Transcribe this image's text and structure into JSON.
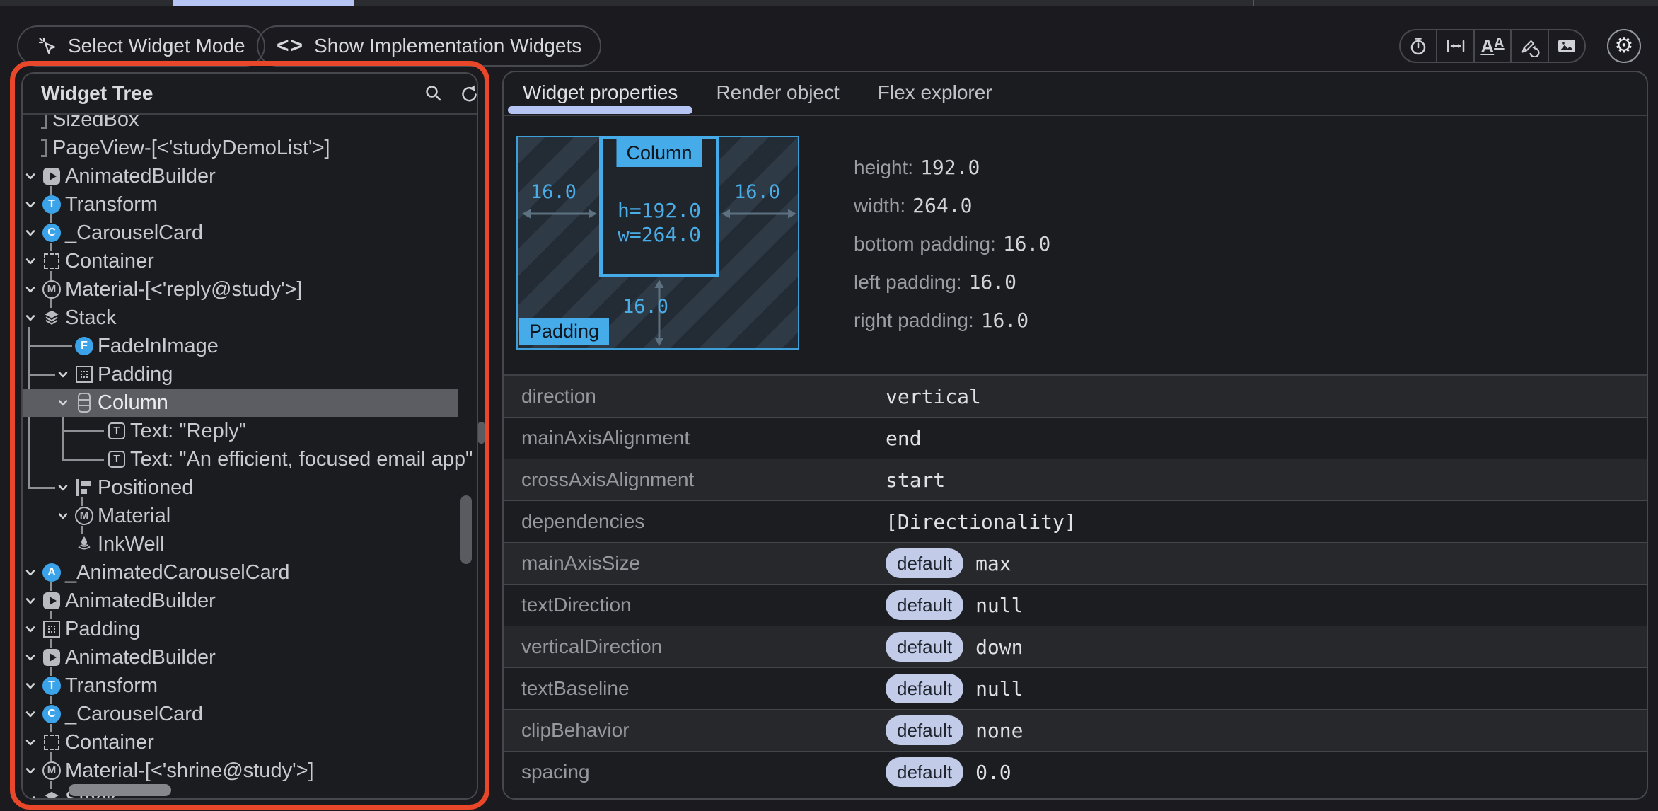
{
  "top_bar": {
    "active_tab_indicator_color": "#b5c4f3"
  },
  "toolbar": {
    "select_widget_mode_label": "Select Widget Mode",
    "show_implementation_widgets_label": "Show Implementation Widgets",
    "icon_buttons": [
      "slow-animations",
      "show-guidelines",
      "text-scaling",
      "highlight-repaints",
      "highlight-oversized-images"
    ],
    "settings_icon": "gear"
  },
  "widget_tree": {
    "title": "Widget Tree",
    "header_icons": [
      "search-icon",
      "refresh-icon"
    ],
    "items": [
      {
        "label": "SizedBox",
        "icon": "bracket",
        "depth": 0,
        "chevron": false
      },
      {
        "label": "PageView-[<'studyDemoList'>]",
        "icon": "bracket",
        "depth": 0,
        "chevron": false
      },
      {
        "label": "AnimatedBuilder",
        "icon": "animated-builder",
        "depth": 1,
        "chevron": true
      },
      {
        "label": "Transform",
        "icon": "letter-circle",
        "letter": "T",
        "depth": 1,
        "chevron": true
      },
      {
        "label": "_CarouselCard",
        "icon": "letter-circle",
        "letter": "C",
        "depth": 1,
        "chevron": true
      },
      {
        "label": "Container",
        "icon": "container",
        "depth": 1,
        "chevron": true
      },
      {
        "label": "Material-[<'reply@study'>]",
        "icon": "material",
        "depth": 1,
        "chevron": true
      },
      {
        "label": "Stack",
        "icon": "stack",
        "depth": 1,
        "chevron": true
      },
      {
        "label": "FadeInImage",
        "icon": "letter-circle",
        "letter": "F",
        "depth": 2,
        "chevron": false
      },
      {
        "label": "Padding",
        "icon": "padding",
        "depth": 2,
        "chevron": true
      },
      {
        "label": "Column",
        "icon": "column",
        "depth": 2,
        "chevron": true,
        "selected": true
      },
      {
        "label": "Text: \"Reply\"",
        "icon": "text",
        "depth": 3,
        "chevron": false
      },
      {
        "label": "Text: \"An efficient, focused email app\"",
        "icon": "text",
        "depth": 3,
        "chevron": false
      },
      {
        "label": "Positioned",
        "icon": "positioned",
        "depth": 2,
        "chevron": true
      },
      {
        "label": "Material",
        "icon": "material",
        "depth": 2,
        "chevron": true
      },
      {
        "label": "InkWell",
        "icon": "inkwell",
        "depth": 2,
        "chevron": false
      },
      {
        "label": "_AnimatedCarouselCard",
        "icon": "letter-circle",
        "letter": "A",
        "depth": 1,
        "chevron": true
      },
      {
        "label": "AnimatedBuilder",
        "icon": "animated-builder",
        "depth": 1,
        "chevron": true
      },
      {
        "label": "Padding",
        "icon": "padding",
        "depth": 1,
        "chevron": true
      },
      {
        "label": "AnimatedBuilder",
        "icon": "animated-builder",
        "depth": 1,
        "chevron": true
      },
      {
        "label": "Transform",
        "icon": "letter-circle",
        "letter": "T",
        "depth": 1,
        "chevron": true
      },
      {
        "label": "_CarouselCard",
        "icon": "letter-circle",
        "letter": "C",
        "depth": 1,
        "chevron": true
      },
      {
        "label": "Container",
        "icon": "container",
        "depth": 1,
        "chevron": true
      },
      {
        "label": "Material-[<'shrine@study'>]",
        "icon": "material",
        "depth": 1,
        "chevron": true
      },
      {
        "label": "Stack",
        "icon": "stack",
        "depth": 1,
        "chevron": true
      }
    ]
  },
  "details": {
    "tabs": [
      "Widget properties",
      "Render object",
      "Flex explorer"
    ],
    "active_tab": "Widget properties",
    "layout": {
      "outer_label": "Padding",
      "inner_label": "Column",
      "inner_line1": "h=192.0",
      "inner_line2": "w=264.0",
      "left_value": "16.0",
      "right_value": "16.0",
      "bottom_value": "16.0",
      "facts": [
        {
          "label": "height:",
          "value": "192.0"
        },
        {
          "label": "width:",
          "value": "264.0"
        },
        {
          "label": "bottom padding:",
          "value": "16.0"
        },
        {
          "label": "left padding:",
          "value": "16.0"
        },
        {
          "label": "right padding:",
          "value": "16.0"
        }
      ],
      "accent_color": "#45abe9"
    },
    "properties": [
      {
        "label": "direction",
        "value": "vertical"
      },
      {
        "label": "mainAxisAlignment",
        "value": "end"
      },
      {
        "label": "crossAxisAlignment",
        "value": "start"
      },
      {
        "label": "dependencies",
        "value": "[Directionality]"
      },
      {
        "label": "mainAxisSize",
        "badge": "default",
        "value": "max"
      },
      {
        "label": "textDirection",
        "badge": "default",
        "value": "null"
      },
      {
        "label": "verticalDirection",
        "badge": "default",
        "value": "down"
      },
      {
        "label": "textBaseline",
        "badge": "default",
        "value": "null"
      },
      {
        "label": "clipBehavior",
        "badge": "default",
        "value": "none"
      },
      {
        "label": "spacing",
        "badge": "default",
        "value": "0.0"
      }
    ]
  },
  "colors": {
    "debug_outline": "#e8472a",
    "selection_row": "#5c5d62",
    "widget_icon_blue": "#3aa3e9",
    "badge_bg": "#c2cce9"
  }
}
